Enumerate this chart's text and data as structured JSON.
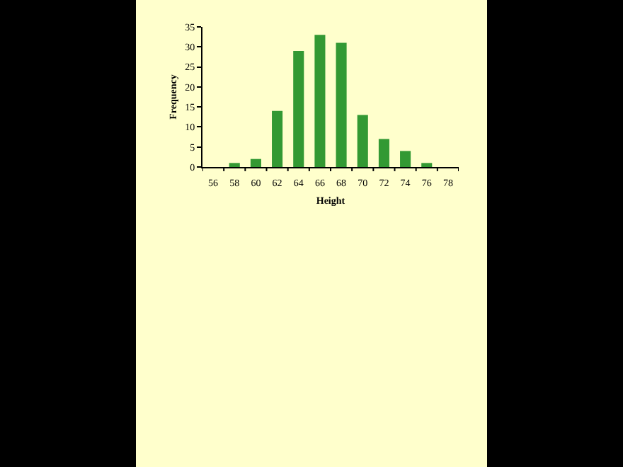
{
  "chart_data": {
    "type": "bar",
    "xlabel": "Height",
    "ylabel": "Frequency",
    "categories": [
      "56",
      "58",
      "60",
      "62",
      "64",
      "66",
      "68",
      "70",
      "72",
      "74",
      "76",
      "78"
    ],
    "values": [
      0,
      1,
      2,
      14,
      29,
      33,
      31,
      13,
      7,
      4,
      1,
      0
    ],
    "color": "#339933",
    "ylim": [
      0,
      35
    ],
    "yticks": [
      0,
      5,
      10,
      15,
      20,
      25,
      30,
      35
    ],
    "grid": false,
    "legend": false
  }
}
